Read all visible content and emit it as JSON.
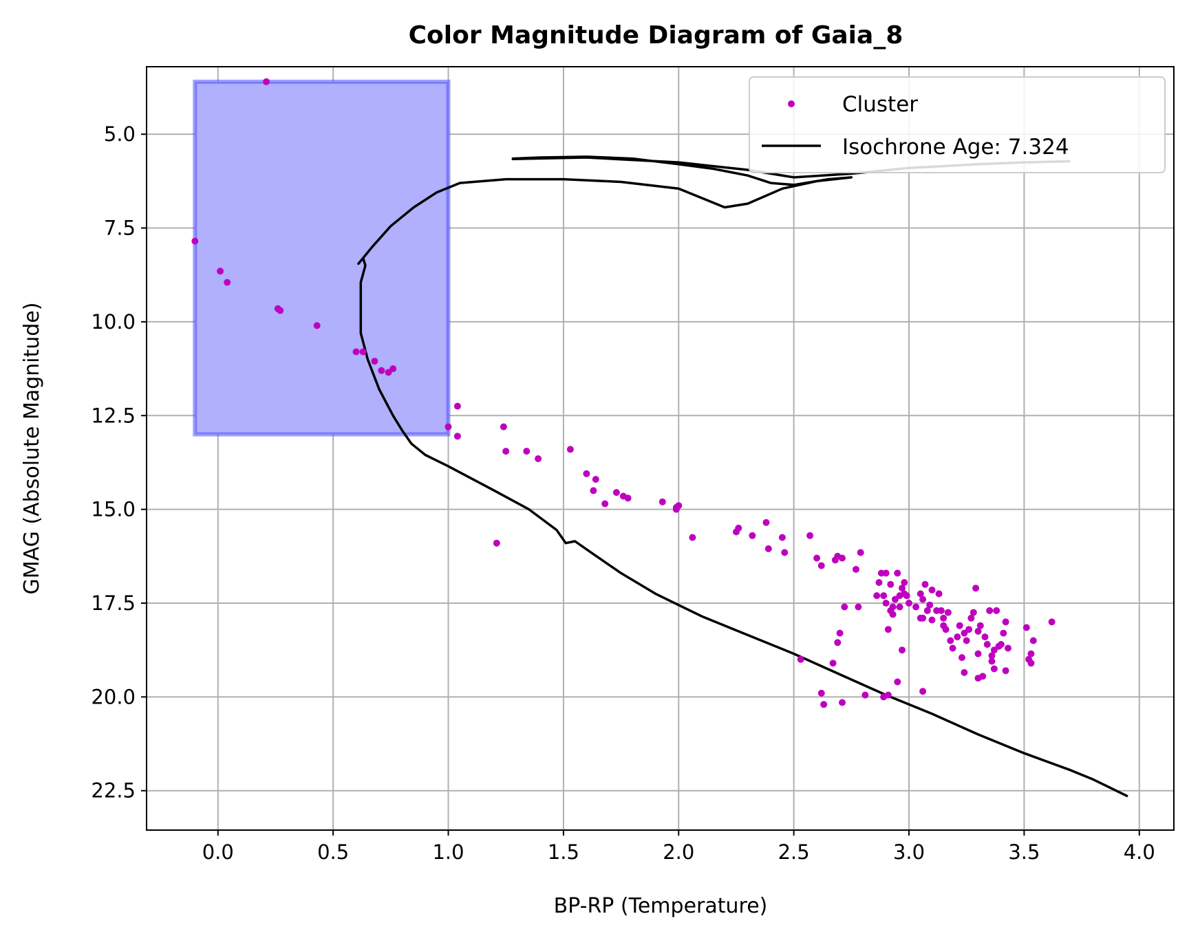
{
  "chart_data": {
    "type": "scatter",
    "title": "Color Magnitude Diagram of Gaia_8",
    "xlabel": "BP-RP (Temperature)",
    "ylabel": "GMAG (Absolute Magnitude)",
    "xlim": [
      -0.31,
      4.15
    ],
    "ylim": [
      23.55,
      3.2
    ],
    "y_inverted": true,
    "grid": true,
    "legend_position": "top-right",
    "xticks": [
      "0.0",
      "0.5",
      "1.0",
      "1.5",
      "2.0",
      "2.5",
      "3.0",
      "3.5",
      "4.0"
    ],
    "xtick_values": [
      0.0,
      0.5,
      1.0,
      1.5,
      2.0,
      2.5,
      3.0,
      3.5,
      4.0
    ],
    "yticks": [
      "5.0",
      "7.5",
      "10.0",
      "12.5",
      "15.0",
      "17.5",
      "20.0",
      "22.5"
    ],
    "ytick_values": [
      5.0,
      7.5,
      10.0,
      12.5,
      15.0,
      17.5,
      20.0,
      22.5
    ],
    "colors": {
      "cluster": "#bf00bf",
      "isochrone": "#000000",
      "region_fill": "#b0b0fc",
      "region_edge": "#5050ff"
    },
    "region": {
      "x": [
        -0.1,
        1.0
      ],
      "y": [
        3.6,
        13.0
      ]
    },
    "series": [
      {
        "name": "Cluster",
        "kind": "scatter",
        "points": [
          [
            0.21,
            3.6
          ],
          [
            -0.1,
            7.85
          ],
          [
            0.01,
            8.65
          ],
          [
            0.04,
            8.95
          ],
          [
            0.26,
            9.65
          ],
          [
            0.27,
            9.7
          ],
          [
            0.43,
            10.1
          ],
          [
            0.6,
            10.8
          ],
          [
            0.63,
            10.8
          ],
          [
            0.68,
            11.05
          ],
          [
            0.71,
            11.3
          ],
          [
            0.74,
            11.35
          ],
          [
            0.76,
            11.25
          ],
          [
            1.0,
            12.8
          ],
          [
            1.04,
            12.25
          ],
          [
            1.04,
            13.05
          ],
          [
            1.24,
            12.8
          ],
          [
            1.25,
            13.45
          ],
          [
            1.34,
            13.45
          ],
          [
            1.39,
            13.65
          ],
          [
            1.21,
            15.9
          ],
          [
            1.53,
            13.4
          ],
          [
            1.6,
            14.05
          ],
          [
            1.64,
            14.2
          ],
          [
            1.63,
            14.5
          ],
          [
            1.68,
            14.85
          ],
          [
            1.73,
            14.55
          ],
          [
            1.76,
            14.65
          ],
          [
            1.78,
            14.7
          ],
          [
            1.93,
            14.8
          ],
          [
            1.99,
            14.95
          ],
          [
            1.99,
            15.0
          ],
          [
            2.0,
            14.9
          ],
          [
            2.06,
            15.75
          ],
          [
            2.25,
            15.6
          ],
          [
            2.26,
            15.5
          ],
          [
            2.32,
            15.7
          ],
          [
            2.38,
            15.35
          ],
          [
            2.39,
            16.05
          ],
          [
            2.45,
            15.75
          ],
          [
            2.46,
            16.15
          ],
          [
            2.57,
            15.7
          ],
          [
            2.6,
            16.3
          ],
          [
            2.62,
            16.5
          ],
          [
            2.68,
            16.35
          ],
          [
            2.69,
            16.25
          ],
          [
            2.71,
            16.3
          ],
          [
            2.77,
            16.6
          ],
          [
            2.79,
            16.15
          ],
          [
            2.53,
            19.0
          ],
          [
            2.67,
            19.1
          ],
          [
            2.7,
            18.3
          ],
          [
            2.69,
            18.55
          ],
          [
            2.72,
            17.6
          ],
          [
            2.78,
            17.6
          ],
          [
            2.62,
            19.9
          ],
          [
            2.63,
            20.2
          ],
          [
            2.71,
            20.15
          ],
          [
            2.81,
            19.95
          ],
          [
            2.87,
            16.95
          ],
          [
            2.88,
            16.7
          ],
          [
            2.89,
            17.3
          ],
          [
            2.9,
            17.5
          ],
          [
            2.9,
            16.7
          ],
          [
            2.92,
            17.7
          ],
          [
            2.93,
            17.6
          ],
          [
            2.94,
            17.4
          ],
          [
            2.95,
            16.7
          ],
          [
            2.96,
            17.3
          ],
          [
            2.97,
            17.1
          ],
          [
            2.98,
            17.25
          ],
          [
            2.99,
            17.3
          ],
          [
            3.0,
            17.5
          ],
          [
            2.95,
            19.6
          ],
          [
            2.97,
            18.75
          ],
          [
            2.91,
            18.2
          ],
          [
            2.93,
            17.8
          ],
          [
            2.89,
            20.0
          ],
          [
            2.91,
            19.95
          ],
          [
            2.96,
            17.6
          ],
          [
            2.98,
            16.95
          ],
          [
            3.03,
            17.6
          ],
          [
            3.05,
            17.9
          ],
          [
            3.06,
            17.4
          ],
          [
            3.07,
            17.0
          ],
          [
            3.08,
            17.7
          ],
          [
            3.09,
            17.55
          ],
          [
            3.1,
            17.15
          ],
          [
            3.1,
            17.95
          ],
          [
            3.06,
            19.85
          ],
          [
            3.13,
            17.25
          ],
          [
            3.14,
            17.7
          ],
          [
            3.15,
            18.1
          ],
          [
            3.15,
            17.9
          ],
          [
            3.16,
            18.2
          ],
          [
            3.17,
            17.75
          ],
          [
            3.18,
            18.5
          ],
          [
            3.19,
            18.7
          ],
          [
            3.21,
            18.4
          ],
          [
            3.22,
            18.1
          ],
          [
            3.23,
            18.95
          ],
          [
            3.24,
            19.35
          ],
          [
            3.24,
            18.3
          ],
          [
            3.25,
            18.5
          ],
          [
            3.26,
            18.2
          ],
          [
            3.27,
            17.9
          ],
          [
            3.28,
            17.75
          ],
          [
            3.29,
            17.1
          ],
          [
            3.3,
            18.85
          ],
          [
            3.3,
            18.25
          ],
          [
            3.3,
            19.5
          ],
          [
            3.31,
            18.1
          ],
          [
            3.32,
            19.45
          ],
          [
            3.33,
            18.4
          ],
          [
            3.34,
            18.6
          ],
          [
            3.35,
            17.7
          ],
          [
            3.36,
            18.9
          ],
          [
            3.36,
            19.05
          ],
          [
            3.37,
            19.25
          ],
          [
            3.37,
            18.75
          ],
          [
            3.38,
            17.7
          ],
          [
            3.39,
            18.65
          ],
          [
            3.41,
            18.3
          ],
          [
            3.4,
            18.6
          ],
          [
            3.42,
            18.0
          ],
          [
            3.42,
            19.3
          ],
          [
            3.43,
            18.7
          ],
          [
            3.51,
            18.15
          ],
          [
            3.52,
            19.0
          ],
          [
            3.53,
            18.85
          ],
          [
            3.53,
            19.1
          ],
          [
            3.54,
            18.5
          ],
          [
            3.62,
            18.0
          ],
          [
            3.06,
            17.9
          ],
          [
            3.12,
            17.7
          ],
          [
            3.05,
            17.25
          ],
          [
            2.92,
            17.0
          ],
          [
            2.86,
            17.3
          ]
        ]
      },
      {
        "name": "Isochrone Age: 7.324",
        "kind": "line",
        "points": [
          [
            3.95,
            22.65
          ],
          [
            3.8,
            22.2
          ],
          [
            3.7,
            21.95
          ],
          [
            3.5,
            21.5
          ],
          [
            3.3,
            21.0
          ],
          [
            3.1,
            20.45
          ],
          [
            2.9,
            19.95
          ],
          [
            2.7,
            19.4
          ],
          [
            2.5,
            18.85
          ],
          [
            2.3,
            18.35
          ],
          [
            2.1,
            17.85
          ],
          [
            1.9,
            17.25
          ],
          [
            1.75,
            16.7
          ],
          [
            1.62,
            16.15
          ],
          [
            1.55,
            15.85
          ],
          [
            1.51,
            15.9
          ],
          [
            1.47,
            15.55
          ],
          [
            1.35,
            15.0
          ],
          [
            1.2,
            14.5
          ],
          [
            1.0,
            13.85
          ],
          [
            0.9,
            13.55
          ],
          [
            0.84,
            13.25
          ],
          [
            0.8,
            12.9
          ],
          [
            0.76,
            12.5
          ],
          [
            0.7,
            11.8
          ],
          [
            0.65,
            11.0
          ],
          [
            0.62,
            10.3
          ],
          [
            0.62,
            9.5
          ],
          [
            0.62,
            8.95
          ],
          [
            0.64,
            8.5
          ],
          [
            0.63,
            8.3
          ],
          [
            0.61,
            8.45
          ],
          [
            0.67,
            8.0
          ],
          [
            0.75,
            7.45
          ],
          [
            0.85,
            6.95
          ],
          [
            0.95,
            6.55
          ],
          [
            1.05,
            6.3
          ],
          [
            1.25,
            6.2
          ],
          [
            1.5,
            6.2
          ],
          [
            1.75,
            6.27
          ],
          [
            2.0,
            6.45
          ],
          [
            2.1,
            6.7
          ],
          [
            2.2,
            6.95
          ],
          [
            2.3,
            6.85
          ],
          [
            2.45,
            6.45
          ],
          [
            2.6,
            6.25
          ],
          [
            2.75,
            6.15
          ],
          [
            2.65,
            6.2
          ],
          [
            2.5,
            6.35
          ],
          [
            2.4,
            6.3
          ],
          [
            2.3,
            6.1
          ],
          [
            2.15,
            5.92
          ],
          [
            2.0,
            5.8
          ],
          [
            1.8,
            5.65
          ],
          [
            1.6,
            5.6
          ],
          [
            1.4,
            5.62
          ],
          [
            1.28,
            5.65
          ],
          [
            1.28,
            5.66
          ],
          [
            1.6,
            5.62
          ],
          [
            2.0,
            5.75
          ],
          [
            2.3,
            5.95
          ],
          [
            2.5,
            6.15
          ],
          [
            2.75,
            6.05
          ],
          [
            3.0,
            5.9
          ],
          [
            3.3,
            5.8
          ],
          [
            3.5,
            5.75
          ],
          [
            3.7,
            5.72
          ]
        ]
      }
    ]
  }
}
